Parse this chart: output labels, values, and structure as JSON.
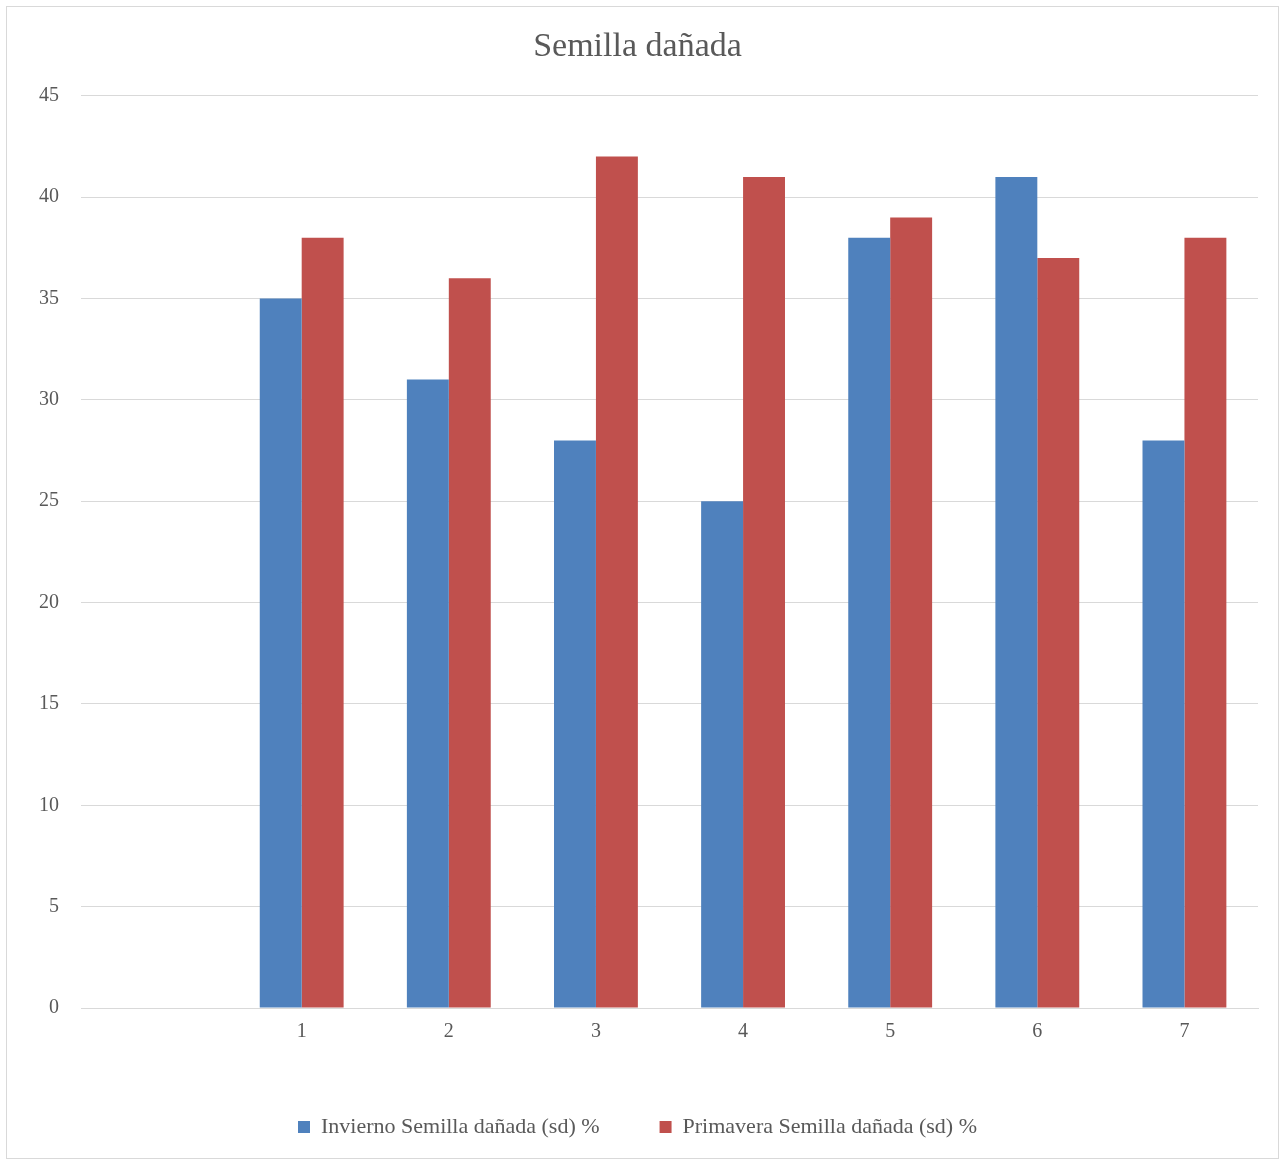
{
  "chart_data": {
    "type": "bar",
    "title": "Semilla dañada",
    "categories": [
      null,
      "1",
      "2",
      "3",
      "4",
      "5",
      "6",
      "7"
    ],
    "series": [
      {
        "name": "Invierno Semilla dañada (sd) %",
        "color": "#4f81bd",
        "values": [
          null,
          35,
          31,
          28,
          25,
          38,
          41,
          28
        ]
      },
      {
        "name": "Primavera Semilla dañada (sd) %",
        "color": "#c0504d",
        "values": [
          null,
          38,
          36,
          42,
          41,
          39,
          37,
          38
        ]
      }
    ],
    "ylim": [
      0,
      45
    ],
    "yticks": [
      0,
      5,
      10,
      15,
      20,
      25,
      30,
      35,
      40,
      45
    ],
    "grid": "y",
    "legend": "bottom"
  }
}
